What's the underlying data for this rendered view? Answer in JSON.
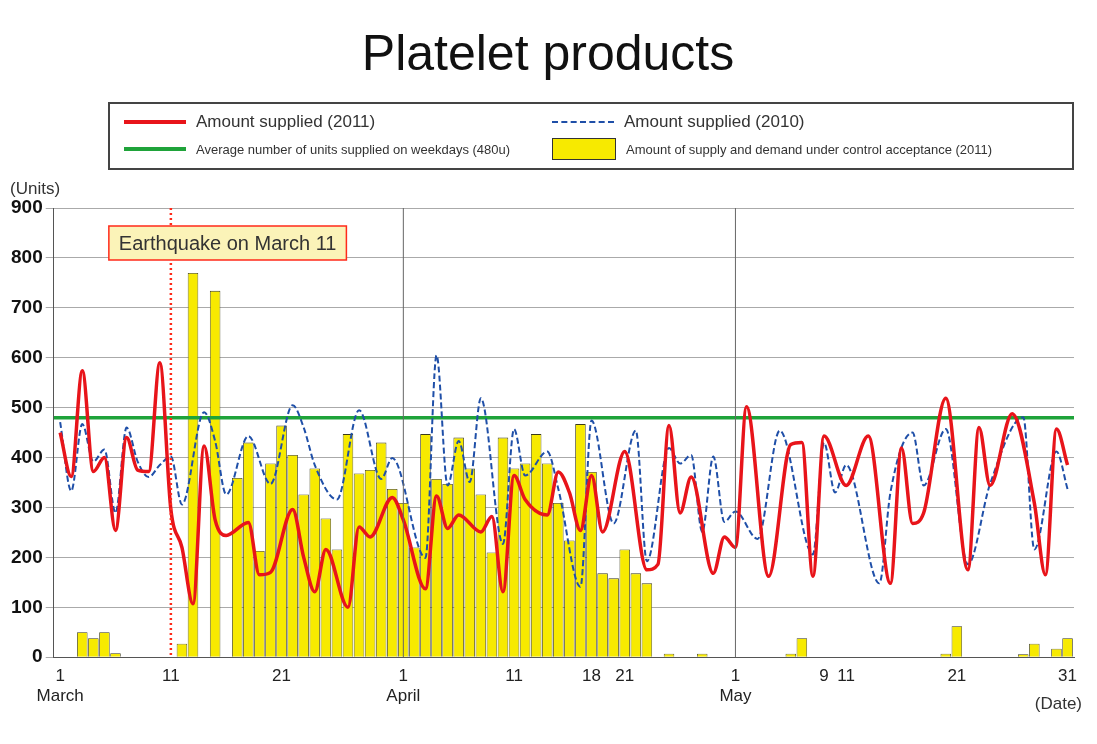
{
  "chart_data": {
    "type": "line",
    "title": "Platelet products",
    "ylabel": "(Units)",
    "xlabel": "(Date)",
    "xlim": [
      "2011-02-28T10:00",
      "2011-05-31T14:00"
    ],
    "ylim": [
      0,
      900
    ],
    "xticks": [
      {
        "value": "2011-03-01",
        "label": "1\nMarch"
      },
      {
        "value": "2011-03-11",
        "label": "11"
      },
      {
        "value": "2011-03-21",
        "label": "21"
      },
      {
        "value": "2011-04-01",
        "label": "1\nApril"
      },
      {
        "value": "2011-04-11",
        "label": "11"
      },
      {
        "value": "2011-04-18",
        "label": "18"
      },
      {
        "value": "2011-04-21",
        "label": "21"
      },
      {
        "value": "2011-05-01",
        "label": "1\nMay"
      },
      {
        "value": "2011-05-09",
        "label": "9"
      },
      {
        "value": "2011-05-11",
        "label": "11"
      },
      {
        "value": "2011-05-21",
        "label": "21"
      },
      {
        "value": "2011-05-31",
        "label": "31"
      }
    ],
    "yticks": [
      0,
      100,
      200,
      300,
      400,
      500,
      600,
      700,
      800,
      900
    ],
    "grid": "y",
    "legend": "top",
    "ref_lines": [
      {
        "axis": "x",
        "value": "2011-03-11",
        "label": "Earthquake on March 11",
        "color": "#ff2a1a",
        "line_style": "dotted"
      },
      {
        "axis": "x",
        "value": "2011-04-01",
        "color": "#666666",
        "line_style": "solid"
      },
      {
        "axis": "x",
        "value": "2011-05-01",
        "color": "#666666",
        "line_style": "solid"
      }
    ],
    "series": [
      {
        "name": "Amount supplied (2011)",
        "color": "#e8141a",
        "line_style": "solid",
        "x": [
          "2011-03-01",
          "2011-03-02",
          "2011-03-03",
          "2011-03-04",
          "2011-03-05",
          "2011-03-06",
          "2011-03-07",
          "2011-03-08",
          "2011-03-09",
          "2011-03-10",
          "2011-03-11",
          "2011-03-12",
          "2011-03-13",
          "2011-03-14",
          "2011-03-15",
          "2011-03-16",
          "2011-03-18",
          "2011-03-19",
          "2011-03-20",
          "2011-03-22",
          "2011-03-23",
          "2011-03-24",
          "2011-03-25",
          "2011-03-27",
          "2011-03-28",
          "2011-03-29",
          "2011-03-31",
          "2011-04-01",
          "2011-04-03",
          "2011-04-04",
          "2011-04-05",
          "2011-04-06",
          "2011-04-08",
          "2011-04-09",
          "2011-04-10",
          "2011-04-11",
          "2011-04-12",
          "2011-04-14",
          "2011-04-15",
          "2011-04-16",
          "2011-04-17",
          "2011-04-18",
          "2011-04-19",
          "2011-04-21",
          "2011-04-23",
          "2011-04-24",
          "2011-04-25",
          "2011-04-26",
          "2011-04-27",
          "2011-04-29",
          "2011-04-30",
          "2011-05-01",
          "2011-05-02",
          "2011-05-04",
          "2011-05-06",
          "2011-05-07",
          "2011-05-08",
          "2011-05-09",
          "2011-05-11",
          "2011-05-13",
          "2011-05-15",
          "2011-05-16",
          "2011-05-17",
          "2011-05-18",
          "2011-05-20",
          "2011-05-22",
          "2011-05-23",
          "2011-05-24",
          "2011-05-26",
          "2011-05-28",
          "2011-05-29",
          "2011-05-30",
          "2011-05-31"
        ],
        "values": [
          450,
          362,
          574,
          372,
          400,
          254,
          440,
          375,
          372,
          590,
          296,
          220,
          107,
          423,
          275,
          244,
          270,
          165,
          170,
          296,
          200,
          131,
          216,
          100,
          261,
          241,
          320,
          275,
          137,
          323,
          258,
          285,
          251,
          282,
          131,
          364,
          316,
          285,
          371,
          330,
          254,
          364,
          251,
          412,
          175,
          186,
          464,
          289,
          361,
          168,
          241,
          220,
          502,
          162,
          426,
          430,
          162,
          443,
          344,
          443,
          148,
          419,
          268,
          289,
          519,
          175,
          460,
          344,
          488,
          309,
          165,
          457,
          385
        ]
      },
      {
        "name": "Amount supplied (2010)",
        "color": "#1f4fa8",
        "line_style": "dashed",
        "x": [
          "2011-03-01",
          "2011-03-02",
          "2011-03-03",
          "2011-03-04",
          "2011-03-05",
          "2011-03-06",
          "2011-03-07",
          "2011-03-08",
          "2011-03-09",
          "2011-03-10",
          "2011-03-11",
          "2011-03-12",
          "2011-03-14",
          "2011-03-15",
          "2011-03-16",
          "2011-03-18",
          "2011-03-20",
          "2011-03-22",
          "2011-03-23",
          "2011-03-24",
          "2011-03-26",
          "2011-03-28",
          "2011-03-30",
          "2011-03-31",
          "2011-04-03",
          "2011-04-04",
          "2011-04-05",
          "2011-04-06",
          "2011-04-07",
          "2011-04-08",
          "2011-04-10",
          "2011-04-11",
          "2011-04-12",
          "2011-04-14",
          "2011-04-15",
          "2011-04-17",
          "2011-04-18",
          "2011-04-20",
          "2011-04-22",
          "2011-04-23",
          "2011-04-25",
          "2011-04-26",
          "2011-04-27",
          "2011-04-28",
          "2011-04-29",
          "2011-04-30",
          "2011-05-01",
          "2011-05-03",
          "2011-05-05",
          "2011-05-08",
          "2011-05-09",
          "2011-05-10",
          "2011-05-11",
          "2011-05-14",
          "2011-05-15",
          "2011-05-17",
          "2011-05-18",
          "2011-05-20",
          "2011-05-22",
          "2011-05-24",
          "2011-05-27",
          "2011-05-28",
          "2011-05-30",
          "2011-05-31"
        ],
        "values": [
          471,
          333,
          467,
          392,
          416,
          289,
          460,
          392,
          361,
          385,
          402,
          306,
          491,
          433,
          326,
          443,
          347,
          505,
          460,
          385,
          316,
          495,
          357,
          399,
          199,
          605,
          344,
          433,
          351,
          519,
          227,
          457,
          364,
          412,
          337,
          141,
          474,
          268,
          454,
          192,
          419,
          388,
          405,
          251,
          402,
          271,
          292,
          237,
          454,
          206,
          430,
          330,
          385,
          148,
          330,
          450,
          344,
          457,
          186,
          347,
          481,
          216,
          412,
          337
        ]
      },
      {
        "name": "Average number of units supplied on weekdays (480u)",
        "color": "#1fa33a",
        "line_style": "solid",
        "x": [
          "2011-02-28T10:00",
          "2011-05-31T14:00"
        ],
        "values": [
          480,
          480
        ]
      },
      {
        "name": "Amount of supply and demand under control acceptance (2011)",
        "type": "bar",
        "color": "#f7ea00",
        "x": [
          "2011-03-03",
          "2011-03-04",
          "2011-03-05",
          "2011-03-06",
          "2011-03-12",
          "2011-03-13",
          "2011-03-15",
          "2011-03-17",
          "2011-03-18",
          "2011-03-19",
          "2011-03-20",
          "2011-03-21",
          "2011-03-22",
          "2011-03-23",
          "2011-03-24",
          "2011-03-25",
          "2011-03-26",
          "2011-03-27",
          "2011-03-28",
          "2011-03-29",
          "2011-03-30",
          "2011-03-31",
          "2011-04-01",
          "2011-04-02",
          "2011-04-03",
          "2011-04-04",
          "2011-04-05",
          "2011-04-06",
          "2011-04-07",
          "2011-04-08",
          "2011-04-09",
          "2011-04-10",
          "2011-04-11",
          "2011-04-12",
          "2011-04-13",
          "2011-04-14",
          "2011-04-15",
          "2011-04-16",
          "2011-04-17",
          "2011-04-18",
          "2011-04-19",
          "2011-04-20",
          "2011-04-21",
          "2011-04-22",
          "2011-04-23",
          "2011-04-25",
          "2011-04-28",
          "2011-05-06",
          "2011-05-07",
          "2011-05-20",
          "2011-05-21",
          "2011-05-27",
          "2011-05-28",
          "2011-05-30",
          "2011-05-31"
        ],
        "values": [
          50,
          38,
          50,
          8,
          27,
          770,
          734,
          359,
          430,
          213,
          388,
          464,
          405,
          326,
          378,
          278,
          216,
          447,
          368,
          375,
          430,
          337,
          309,
          220,
          447,
          357,
          347,
          440,
          378,
          326,
          210,
          440,
          378,
          388,
          447,
          388,
          309,
          234,
          467,
          371,
          168,
          158,
          216,
          168,
          148,
          7,
          7,
          7,
          38,
          7,
          62,
          6,
          27,
          17,
          38
        ]
      }
    ]
  }
}
